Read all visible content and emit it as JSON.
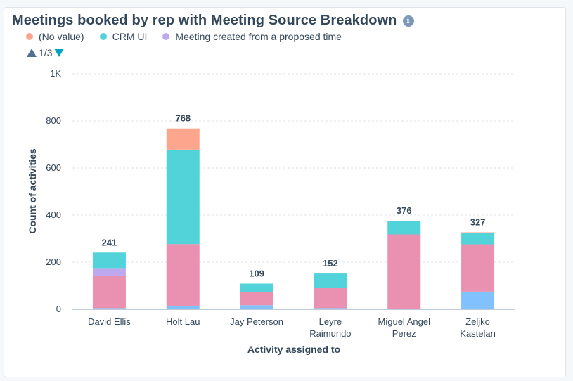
{
  "title": "Meetings booked by rep with Meeting Source Breakdown",
  "info_icon": "info-icon",
  "legend": [
    {
      "label": "(No value)",
      "color": "#fea58e"
    },
    {
      "label": "CRM UI",
      "color": "#51d3d9"
    },
    {
      "label": "Meeting created from a proposed time",
      "color": "#bfa9ee"
    }
  ],
  "pager": {
    "text": "1/3"
  },
  "chart_data": {
    "type": "bar",
    "stacked": true,
    "xlabel": "Activity assigned to",
    "ylabel": "Count of activities",
    "ylim": [
      0,
      1000
    ],
    "y_ticks": [
      "0",
      "200",
      "400",
      "600",
      "800",
      "1K"
    ],
    "y_tick_values": [
      0,
      200,
      400,
      600,
      800,
      1000
    ],
    "categories": [
      [
        "David Ellis"
      ],
      [
        "Holt Lau"
      ],
      [
        "Jay Peterson"
      ],
      [
        "Leyre",
        "Raimundo"
      ],
      [
        "Miguel Angel",
        "Perez"
      ],
      [
        "Zeljko",
        "Kastelan"
      ]
    ],
    "totals": [
      241,
      768,
      109,
      152,
      376,
      327
    ],
    "series": [
      {
        "color": "#81c1fd",
        "values": [
          5,
          15,
          17,
          5,
          0,
          75
        ]
      },
      {
        "color": "#ea90b1",
        "values": [
          137,
          262,
          57,
          87,
          318,
          201
        ]
      },
      {
        "color": "#bfa9ee",
        "values": [
          33,
          0,
          0,
          0,
          0,
          0
        ]
      },
      {
        "name": "CRM UI",
        "color": "#51d3d9",
        "values": [
          66,
          401,
          35,
          60,
          58,
          48
        ]
      },
      {
        "name": "(No value)",
        "color": "#fea58e",
        "values": [
          0,
          90,
          0,
          0,
          0,
          3
        ]
      }
    ]
  }
}
